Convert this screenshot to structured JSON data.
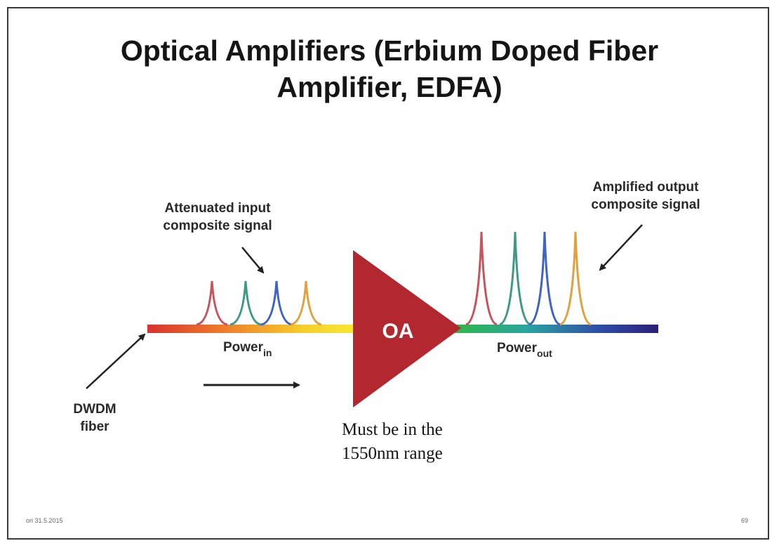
{
  "slide": {
    "title_line1": "Optical Amplifiers (Erbium Doped Fiber",
    "title_line2": "Amplifier, EDFA)",
    "input_label_line1": "Attenuated input",
    "input_label_line2": "composite signal",
    "output_label_line1": "Amplified output",
    "output_label_line2": "composite signal",
    "amplifier_label": "OA",
    "power_in_base": "Power",
    "power_in_sub": "in",
    "power_out_base": "Power",
    "power_out_sub": "out",
    "fiber_label_line1": "DWDM",
    "fiber_label_line2": "fiber",
    "note_line1": "Must be in the",
    "note_line2": "1550nm range",
    "footer_left": "ori 31.5.2015",
    "footer_right": "69"
  },
  "colors": {
    "amplifier": "#b3272e",
    "peak_red": "#c6545c",
    "peak_teal": "#3f9a84",
    "peak_blue": "#3f63c4",
    "peak_orange": "#e2a13c"
  }
}
